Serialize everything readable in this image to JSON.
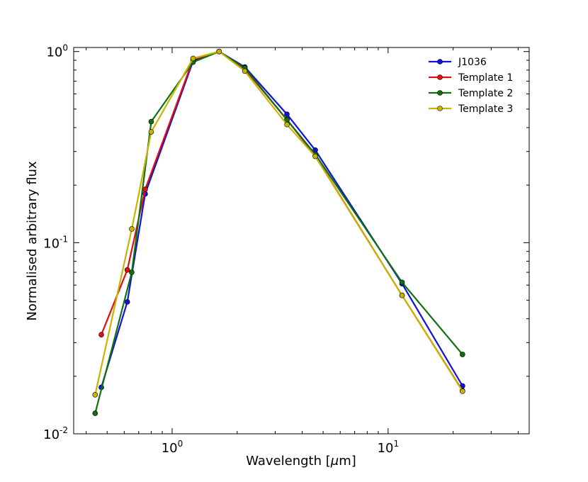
{
  "chart_data": {
    "type": "line",
    "title": "",
    "xlabel": "Wavelength [$\\mu$m]",
    "ylabel": "Normalised arbitrary flux",
    "xscale": "log",
    "yscale": "log",
    "xlim": [
      0.35,
      45
    ],
    "ylim": [
      0.01,
      1.05
    ],
    "x_ticks": [
      {
        "value": 1,
        "base": "10",
        "exp": "0"
      },
      {
        "value": 10,
        "base": "10",
        "exp": "1"
      }
    ],
    "y_ticks": [
      {
        "value": 0.01,
        "base": "10",
        "exp": "-2"
      },
      {
        "value": 0.1,
        "base": "10",
        "exp": "-1"
      },
      {
        "value": 1,
        "base": "10",
        "exp": "0"
      }
    ],
    "legend_position": "top-right",
    "series": [
      {
        "name": "J1036",
        "color": "#1010e0",
        "points": [
          [
            0.47,
            0.0175
          ],
          [
            0.62,
            0.049
          ],
          [
            0.75,
            0.18
          ],
          [
            1.25,
            0.89
          ],
          [
            1.65,
            1.0
          ],
          [
            2.17,
            0.83
          ],
          [
            3.4,
            0.47
          ],
          [
            4.6,
            0.305
          ],
          [
            11.6,
            0.061
          ],
          [
            22.1,
            0.0178
          ]
        ]
      },
      {
        "name": "Template 1",
        "color": "#e01010",
        "points": [
          [
            0.47,
            0.033
          ],
          [
            0.62,
            0.072
          ],
          [
            0.75,
            0.19
          ],
          [
            1.25,
            0.91
          ],
          [
            1.65,
            1.0
          ],
          [
            2.17,
            0.81
          ],
          [
            3.4,
            0.44
          ],
          [
            4.6,
            0.285
          ],
          [
            11.6,
            0.053
          ],
          [
            22.1,
            0.0168
          ]
        ]
      },
      {
        "name": "Template 2",
        "color": "#107010",
        "points": [
          [
            0.44,
            0.0128
          ],
          [
            0.65,
            0.07
          ],
          [
            0.8,
            0.43
          ],
          [
            1.25,
            0.88
          ],
          [
            1.65,
            1.0
          ],
          [
            2.17,
            0.82
          ],
          [
            3.4,
            0.44
          ],
          [
            4.6,
            0.29
          ],
          [
            11.6,
            0.062
          ],
          [
            22.1,
            0.026
          ]
        ]
      },
      {
        "name": "Template 3",
        "color": "#c8b400",
        "points": [
          [
            0.44,
            0.016
          ],
          [
            0.65,
            0.118
          ],
          [
            0.8,
            0.38
          ],
          [
            1.25,
            0.92
          ],
          [
            1.65,
            1.0
          ],
          [
            2.17,
            0.79
          ],
          [
            3.4,
            0.415
          ],
          [
            4.6,
            0.283
          ],
          [
            11.6,
            0.053
          ],
          [
            22.1,
            0.0167
          ]
        ]
      }
    ]
  },
  "labels": {
    "xlabel_prefix": "Wavelength [",
    "xlabel_symbol": "μ",
    "xlabel_suffix": "m]"
  }
}
